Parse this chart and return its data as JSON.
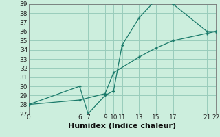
{
  "title": "",
  "xlabel": "Humidex (Indice chaleur)",
  "bg_color": "#cceedd",
  "grid_color": "#99ccbb",
  "line_color": "#1a7a6a",
  "line1_x": [
    0,
    6,
    7,
    9,
    10,
    11,
    13,
    15,
    17,
    21,
    22
  ],
  "line1_y": [
    28,
    30,
    27,
    29,
    29.5,
    34.5,
    37.5,
    39.5,
    39,
    36,
    36
  ],
  "line2_x": [
    0,
    6,
    9,
    10,
    13,
    15,
    17,
    21,
    22
  ],
  "line2_y": [
    28,
    28.5,
    29.2,
    31.5,
    33.2,
    34.2,
    35.0,
    35.8,
    36
  ],
  "xlim": [
    0,
    22
  ],
  "ylim": [
    27,
    39
  ],
  "xticks": [
    0,
    6,
    7,
    9,
    10,
    11,
    13,
    15,
    17,
    21,
    22
  ],
  "yticks": [
    27,
    28,
    29,
    30,
    31,
    32,
    33,
    34,
    35,
    36,
    37,
    38,
    39
  ],
  "tick_fontsize": 6.5,
  "xlabel_fontsize": 8
}
